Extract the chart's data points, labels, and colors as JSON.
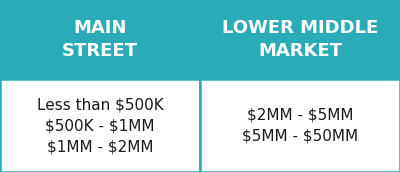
{
  "col1_header": "MAIN\nSTREET",
  "col2_header": "LOWER MIDDLE\nMARKET",
  "col1_body": "Less than $500K\n$500K - $1MM\n$1MM - $2MM",
  "col2_body": "$2MM - $5MM\n$5MM - $50MM",
  "header_bg_color": "#2AACB8",
  "header_text_color": "#FFFFFF",
  "body_bg_color": "#FFFFFF",
  "body_text_color": "#1a1a1a",
  "border_color": "#2AACB8",
  "header_fontsize": 13,
  "body_fontsize": 11,
  "fig_width": 4.0,
  "fig_height": 1.72,
  "dpi": 100
}
